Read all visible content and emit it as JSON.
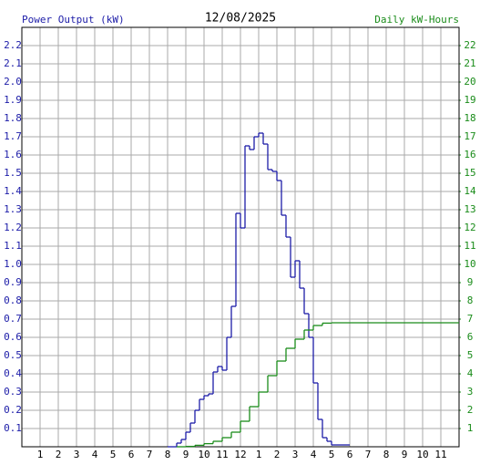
{
  "chart_data": {
    "type": "step",
    "title": "12/08/2025",
    "y_label": "Power Output (kW)",
    "y2_label": "Daily kW-Hours",
    "xlim": [
      0,
      24
    ],
    "xticks": [
      1,
      2,
      3,
      4,
      5,
      6,
      7,
      8,
      9,
      10,
      11,
      12,
      {
        "value": 13,
        "label": "1"
      },
      {
        "value": 14,
        "label": "2"
      },
      {
        "value": 15,
        "label": "3"
      },
      {
        "value": 16,
        "label": "4"
      },
      {
        "value": 17,
        "label": "5"
      },
      {
        "value": 18,
        "label": "6"
      },
      {
        "value": 19,
        "label": "7"
      },
      {
        "value": 20,
        "label": "8"
      },
      {
        "value": 21,
        "label": "9"
      },
      {
        "value": 22,
        "label": "10"
      },
      {
        "value": 23,
        "label": "11"
      }
    ],
    "ylim": [
      0,
      2.3
    ],
    "yticks": [
      0.1,
      0.2,
      0.3,
      0.4,
      0.5,
      0.6,
      0.7,
      0.8,
      0.9,
      {
        "value": 1,
        "label": "1.0"
      },
      1.1,
      1.2,
      1.3,
      1.4,
      1.5,
      1.6,
      1.7,
      1.8,
      1.9,
      {
        "value": 2,
        "label": "2.0"
      },
      2.1,
      2.2
    ],
    "y2lim": [
      0,
      23
    ],
    "y2ticks": [
      1,
      2,
      3,
      4,
      5,
      6,
      7,
      8,
      9,
      10,
      11,
      12,
      13,
      14,
      15,
      16,
      17,
      18,
      19,
      20,
      21,
      22
    ],
    "grid": true,
    "series": [
      {
        "color": "#1c1ca8",
        "x": [
          8,
          8.25,
          8.5,
          8.75,
          9,
          9.25,
          9.5,
          9.75,
          10,
          10.25,
          10.5,
          10.75,
          11,
          11.25,
          11.5,
          11.75,
          12,
          12.25,
          12.5,
          12.75,
          13,
          13.25,
          13.5,
          13.75,
          14,
          14.25,
          14.5,
          14.75,
          15,
          15.25,
          15.5,
          15.75,
          16,
          16.25,
          16.5,
          16.75,
          17,
          17.25,
          17.5,
          17.75,
          18
        ],
        "values": [
          0,
          0,
          0.02,
          0.04,
          0.08,
          0.13,
          0.2,
          0.26,
          0.28,
          0.29,
          0.41,
          0.44,
          0.42,
          0.6,
          0.77,
          1.28,
          1.2,
          1.65,
          1.63,
          1.7,
          1.72,
          1.66,
          1.52,
          1.51,
          1.46,
          1.27,
          1.15,
          0.93,
          1.02,
          0.87,
          0.73,
          0.6,
          0.35,
          0.15,
          0.05,
          0.03,
          0.01,
          0.01,
          0.01,
          0.01,
          0.01
        ]
      },
      {
        "color": "#1a8c1a",
        "axis": "y2",
        "x": [
          8.5,
          9,
          9.5,
          10,
          10.5,
          11,
          11.5,
          12,
          12.5,
          13,
          13.5,
          14,
          14.5,
          15,
          15.5,
          16,
          16.5,
          17,
          24
        ],
        "values": [
          0,
          0.02,
          0.08,
          0.17,
          0.3,
          0.5,
          0.8,
          1.4,
          2.2,
          3.0,
          3.9,
          4.7,
          5.4,
          5.9,
          6.4,
          6.65,
          6.78,
          6.8,
          6.8
        ]
      }
    ]
  }
}
